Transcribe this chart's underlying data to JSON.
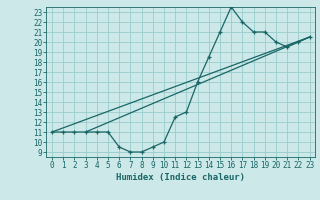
{
  "title": "",
  "xlabel": "Humidex (Indice chaleur)",
  "bg_color": "#cce8e8",
  "grid_color": "#99cccc",
  "line_color": "#1a6666",
  "xlim": [
    -0.5,
    23.5
  ],
  "ylim": [
    8.5,
    23.5
  ],
  "yticks": [
    9,
    10,
    11,
    12,
    13,
    14,
    15,
    16,
    17,
    18,
    19,
    20,
    21,
    22,
    23
  ],
  "xticks": [
    0,
    1,
    2,
    3,
    4,
    5,
    6,
    7,
    8,
    9,
    10,
    11,
    12,
    13,
    14,
    15,
    16,
    17,
    18,
    19,
    20,
    21,
    22,
    23
  ],
  "line1_x": [
    0,
    1,
    2,
    3,
    4,
    5,
    6,
    7,
    8,
    9,
    10,
    11,
    12,
    13,
    14,
    15,
    16,
    17,
    18,
    19,
    20,
    21,
    22,
    23
  ],
  "line1_y": [
    11,
    11,
    11,
    11,
    11,
    11,
    9.5,
    9,
    9,
    9.5,
    10,
    12.5,
    13,
    16,
    18.5,
    21,
    23.5,
    22,
    21,
    21,
    20,
    19.5,
    20,
    20.5
  ],
  "line2_x": [
    0,
    23
  ],
  "line2_y": [
    11,
    20.5
  ],
  "line3_x": [
    3,
    23
  ],
  "line3_y": [
    11,
    20.5
  ],
  "tick_fontsize": 5.5,
  "xlabel_fontsize": 6.5
}
